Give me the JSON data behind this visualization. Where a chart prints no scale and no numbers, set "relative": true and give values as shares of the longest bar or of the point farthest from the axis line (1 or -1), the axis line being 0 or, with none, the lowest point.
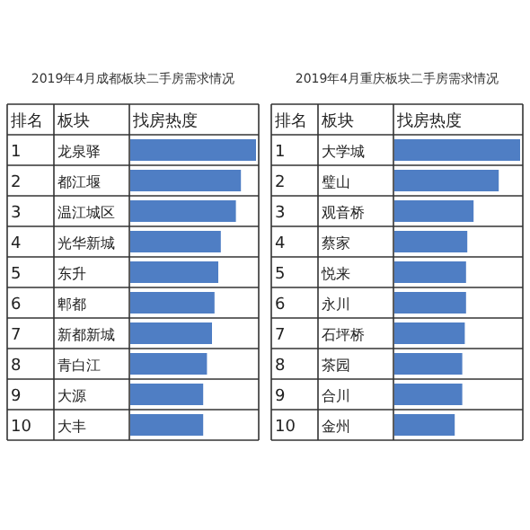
{
  "chart_data": [
    {
      "type": "bar",
      "orientation": "horizontal",
      "relative": true,
      "title": "2019年4月成都板块二手房需求情况",
      "categories": [
        "龙泉驿",
        "都江堰",
        "温江城区",
        "光华新城",
        "东升",
        "郫都",
        "新都新城",
        "青白江",
        "大源",
        "大丰"
      ],
      "values": [
        1,
        0.88,
        0.84,
        0.72,
        0.7,
        0.67,
        0.65,
        0.61,
        0.58,
        0.58
      ],
      "color": "#4f7ec4",
      "annotations": [
        "排名",
        "板块",
        "找房热度",
        "1",
        "2",
        "3",
        "4",
        "5",
        "6",
        "7",
        "8",
        "9",
        "10"
      ]
    },
    {
      "type": "bar",
      "orientation": "horizontal",
      "relative": true,
      "title": "2019年4月重庆板块二手房需求情况",
      "categories": [
        "大学城",
        "璧山",
        "观音桥",
        "蔡家",
        "悦来",
        "永川",
        "石坪桥",
        "茶园",
        "合川",
        "金州"
      ],
      "values": [
        1,
        0.83,
        0.63,
        0.58,
        0.57,
        0.57,
        0.56,
        0.54,
        0.54,
        0.48
      ],
      "color": "#4f7ec4",
      "annotations": [
        "排名",
        "板块",
        "找房热度",
        "1",
        "2",
        "3",
        "4",
        "5",
        "6",
        "7",
        "8",
        "9",
        "10"
      ]
    }
  ]
}
